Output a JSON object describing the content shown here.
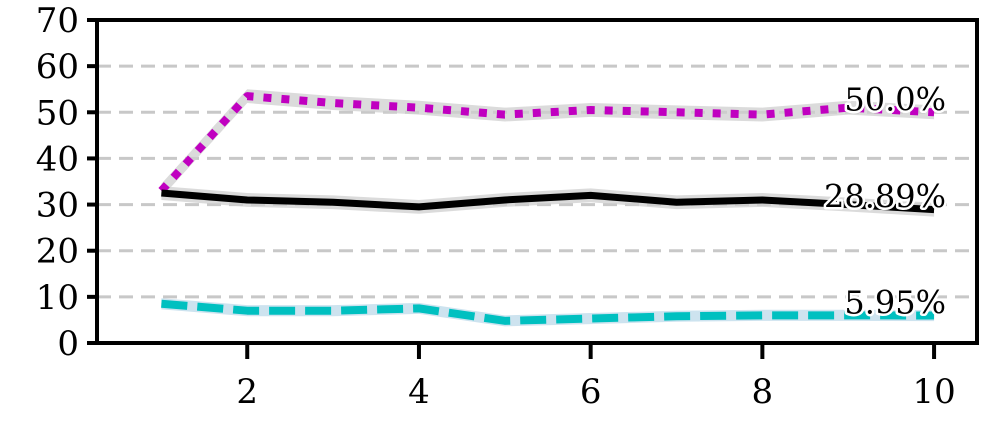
{
  "chart_data": {
    "type": "line",
    "title": "",
    "xlabel": "",
    "ylabel": "",
    "xlim": [
      0.25,
      10.5
    ],
    "ylim": [
      0,
      70
    ],
    "xticks": [
      2,
      4,
      6,
      8,
      10
    ],
    "yticks": [
      0,
      10,
      20,
      30,
      40,
      50,
      60,
      70
    ],
    "grid": "horizontal dashed",
    "legend": "none",
    "x": [
      1,
      2,
      3,
      4,
      5,
      6,
      7,
      8,
      9,
      10
    ],
    "series": [
      {
        "color": "#c000c0",
        "line_style": "dotted",
        "values": [
          33.0,
          53.5,
          52.0,
          51.0,
          49.5,
          50.5,
          50.0,
          49.5,
          51.0,
          50.0
        ],
        "band_half_width": 1.5,
        "end_label": "50.0%"
      },
      {
        "color": "#000000",
        "line_style": "solid",
        "values": [
          32.5,
          31.0,
          30.5,
          29.5,
          31.0,
          32.0,
          30.5,
          31.0,
          30.0,
          28.9
        ],
        "band_half_width": 1.5,
        "end_label": "28.89%"
      },
      {
        "color": "#00c0c0",
        "line_style": "dashed",
        "values": [
          8.5,
          7.0,
          7.0,
          7.5,
          4.8,
          5.3,
          5.8,
          6.0,
          6.0,
          5.95
        ],
        "band_half_width": 1.2,
        "end_label": "5.95%"
      }
    ]
  }
}
